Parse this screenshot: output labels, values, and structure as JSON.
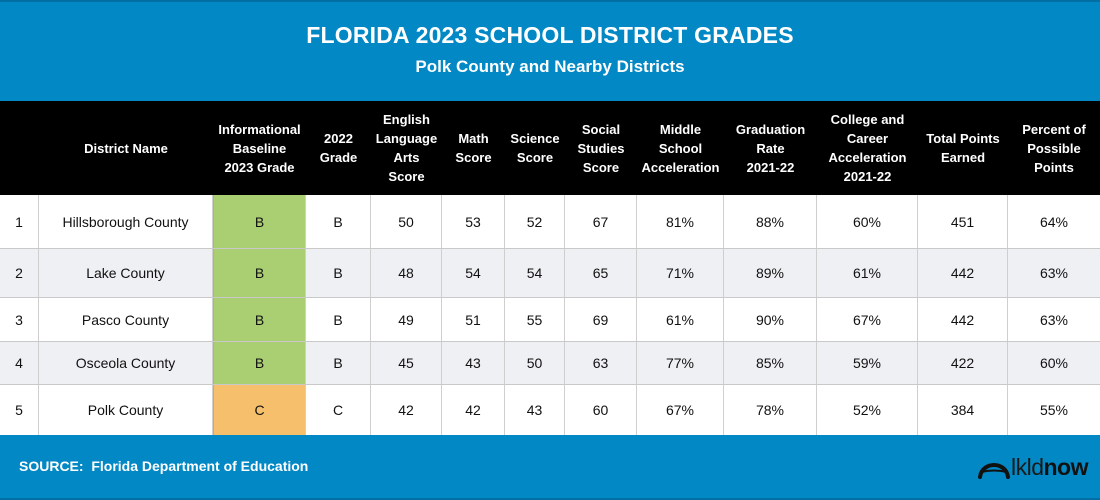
{
  "header": {
    "title": "FLORIDA 2023 SCHOOL DISTRICT GRADES",
    "subtitle": "Polk County and Nearby Districts"
  },
  "footer": {
    "source": "SOURCE:  Florida Department of Education",
    "logo_light": "lkld",
    "logo_bold": "now",
    "logo_icon": "arch-bridge-icon"
  },
  "colors": {
    "brand_blue": "#0288c4",
    "header_black": "#000000",
    "grade_b_green": "#a9cf72",
    "grade_c_orange": "#f5bf6c",
    "alt_row": "#eff0f4"
  },
  "chart_data": {
    "type": "table",
    "title": "FLORIDA 2023 SCHOOL DISTRICT GRADES",
    "subtitle": "Polk County and Nearby Districts",
    "columns": [
      "",
      "District Name",
      "Informational\nBaseline\n2023 Grade",
      "2022\nGrade",
      "English\nLanguage\nArts\nScore",
      "Math\nScore",
      "Science\nScore",
      "Social\nStudies\nScore",
      "Middle\nSchool\nAcceleration",
      "Graduation\nRate\n2021-22",
      "College and\nCareer\nAcceleration\n2021-22",
      "Total Points\nEarned",
      "Percent of\nPossible\nPoints"
    ],
    "rows": [
      [
        "1",
        "Hillsborough County",
        "B",
        "B",
        "50",
        "53",
        "52",
        "67",
        "81%",
        "88%",
        "60%",
        "451",
        "64%"
      ],
      [
        "2",
        "Lake County",
        "B",
        "B",
        "48",
        "54",
        "54",
        "65",
        "71%",
        "89%",
        "61%",
        "442",
        "63%"
      ],
      [
        "3",
        "Pasco County",
        "B",
        "B",
        "49",
        "51",
        "55",
        "69",
        "61%",
        "90%",
        "67%",
        "442",
        "63%"
      ],
      [
        "4",
        "Osceola County",
        "B",
        "B",
        "45",
        "43",
        "50",
        "63",
        "77%",
        "85%",
        "59%",
        "422",
        "60%"
      ],
      [
        "5",
        "Polk County",
        "C",
        "C",
        "42",
        "42",
        "43",
        "60",
        "67%",
        "78%",
        "52%",
        "384",
        "55%"
      ]
    ],
    "source": "Florida Department of Education"
  }
}
